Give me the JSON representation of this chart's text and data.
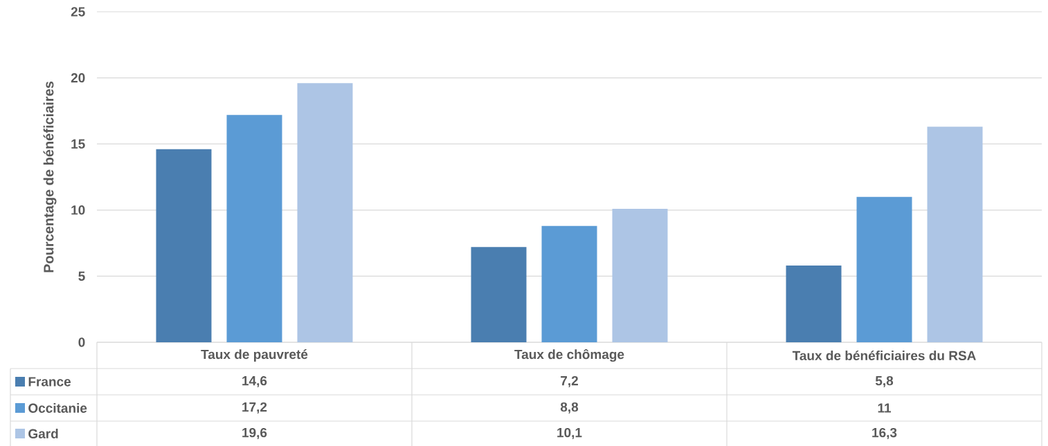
{
  "chart_data": {
    "type": "bar",
    "ylabel": "Pourcentage de bénéficiaires",
    "categories": [
      "Taux de pauvreté",
      "Taux de chômage",
      "Taux de bénéficiaires du RSA"
    ],
    "series": [
      {
        "name": "France",
        "color": "#4a7eb0",
        "values": [
          14.6,
          7.2,
          5.8
        ],
        "value_labels": [
          "14,6",
          "7,2",
          "5,8"
        ]
      },
      {
        "name": "Occitanie",
        "color": "#5b9bd5",
        "values": [
          17.2,
          8.8,
          11
        ],
        "value_labels": [
          "17,2",
          "8,8",
          "11"
        ]
      },
      {
        "name": "Gard",
        "color": "#adc5e5",
        "values": [
          19.6,
          10.1,
          16.3
        ],
        "value_labels": [
          "19,6",
          "10,1",
          "16,3"
        ]
      }
    ],
    "ylim": [
      0,
      25
    ],
    "yticks": [
      0,
      5,
      10,
      15,
      20,
      25
    ],
    "grid": "y",
    "legend": "bottom left"
  }
}
